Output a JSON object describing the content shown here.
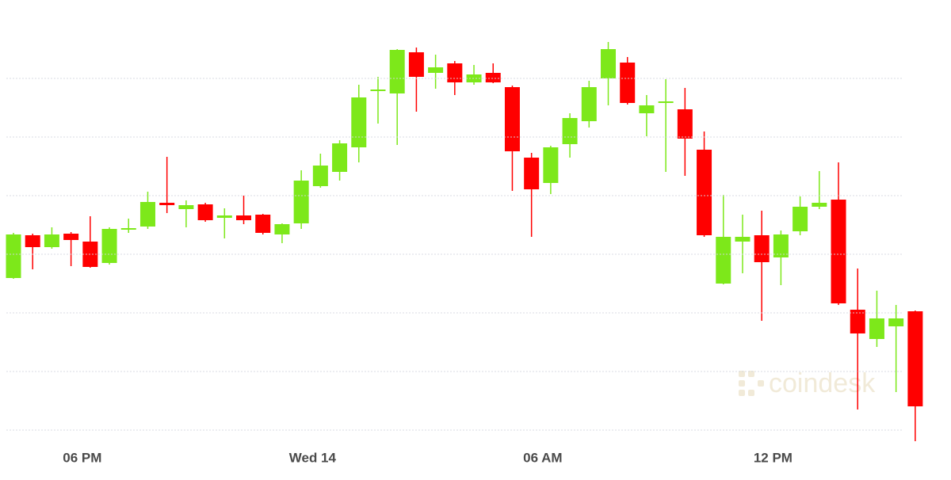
{
  "chart_data": {
    "type": "candlestick",
    "watermark": "coindesk",
    "categories": [
      null,
      null,
      null,
      null,
      "06 PM",
      null,
      null,
      null,
      null,
      null,
      null,
      null,
      null,
      null,
      null,
      null,
      "Wed 14",
      null,
      null,
      null,
      null,
      null,
      null,
      null,
      null,
      null,
      null,
      null,
      "06 AM",
      null,
      null,
      null,
      null,
      null,
      null,
      null,
      null,
      null,
      null,
      null,
      "12 PM",
      null,
      null,
      null,
      null,
      null,
      null,
      null
    ],
    "open": [
      266,
      320,
      305,
      322,
      312,
      285,
      327,
      331,
      361,
      353,
      359,
      342,
      345,
      346,
      321,
      335,
      382,
      400,
      431,
      502,
      499,
      551,
      525,
      537,
      513,
      525,
      507,
      418,
      386,
      435,
      464,
      518,
      538,
      474,
      487,
      479,
      428,
      259,
      312,
      320,
      292,
      325,
      356,
      365,
      226,
      189,
      205,
      224
    ],
    "high": [
      323,
      322,
      330,
      324,
      344,
      330,
      341,
      375,
      419,
      364,
      361,
      354,
      370,
      347,
      335,
      402,
      423,
      440,
      510,
      520,
      555,
      557,
      548,
      540,
      535,
      537,
      509,
      424,
      433,
      474,
      515,
      564,
      545,
      497,
      517,
      506,
      451,
      371,
      346,
      351,
      326,
      369,
      401,
      412,
      278,
      250,
      232,
      225
    ],
    "low": [
      265,
      277,
      303,
      281,
      279,
      283,
      323,
      328,
      348,
      330,
      337,
      316,
      334,
      321,
      310,
      328,
      380,
      389,
      412,
      461,
      434,
      476,
      505,
      497,
      510,
      512,
      376,
      318,
      372,
      418,
      456,
      484,
      485,
      445,
      400,
      395,
      318,
      258,
      272,
      212,
      257,
      320,
      353,
      232,
      100,
      179,
      122,
      60
    ],
    "close": [
      321,
      305,
      321,
      314,
      280,
      328,
      329,
      362,
      358,
      358,
      339,
      345,
      339,
      323,
      334,
      389,
      408,
      436,
      494,
      504,
      554,
      520,
      532,
      513,
      523,
      513,
      426,
      378,
      431,
      468,
      507,
      555,
      487,
      484,
      489,
      442,
      320,
      318,
      318,
      286,
      321,
      356,
      361,
      234,
      196,
      215,
      215,
      104
    ],
    "up_color": "#7de81a",
    "down_color": "#ff0000",
    "ylim": [
      37,
      592
    ],
    "yticks": [
      74,
      148,
      222,
      296,
      370,
      444,
      518
    ],
    "grid": true
  }
}
